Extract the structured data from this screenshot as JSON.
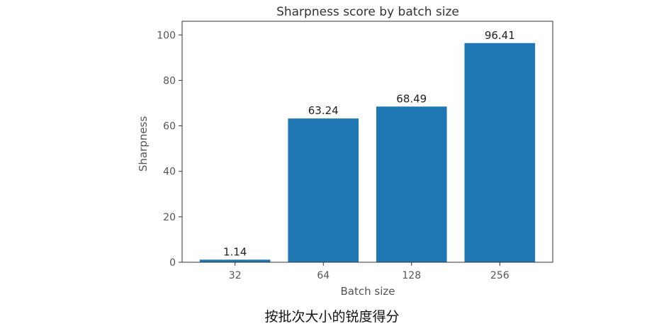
{
  "caption": "按批次大小的锐度得分",
  "chart_data": {
    "type": "bar",
    "title": "Sharpness score by batch size",
    "xlabel": "Batch size",
    "ylabel": "Sharpness",
    "categories": [
      "32",
      "64",
      "128",
      "256"
    ],
    "values": [
      1.14,
      63.24,
      68.49,
      96.41
    ],
    "data_labels": [
      "1.14",
      "63.24",
      "68.49",
      "96.41"
    ],
    "ylim": [
      0,
      106
    ],
    "yticks": [
      0,
      20,
      40,
      60,
      80,
      100
    ],
    "bar_color": "#1f77b4",
    "grid": false,
    "legend": "none"
  }
}
